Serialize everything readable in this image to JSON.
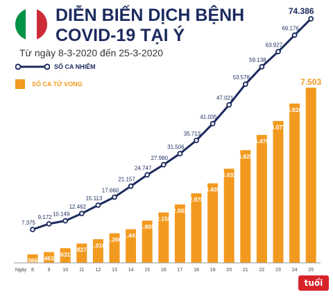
{
  "header": {
    "title_line1": "DIỄN BIẾN DỊCH BỆNH",
    "title_line2": "COVID-19 TẠI Ý",
    "subtitle": "Từ ngày 8-3-2020 đến 25-3-2020",
    "flag_colors": [
      "#009246",
      "#ffffff",
      "#ce2b37"
    ]
  },
  "legend": {
    "cases_label": "SỐ CA NHIỄM",
    "deaths_label": "SỐ CA TỬ VONG"
  },
  "colors": {
    "cases": "#1c2a5e",
    "deaths": "#f29a1f"
  },
  "logo": {
    "text": "tuổi trẻ"
  },
  "chart_data": {
    "type": "bar+line",
    "title": "DIỄN BIẾN DỊCH BỆNH COVID-19 TẠI Ý",
    "subtitle": "Từ ngày 8-3-2020 đến 25-3-2020",
    "xlabel": "Ngày",
    "categories": [
      "8",
      "9",
      "10",
      "11",
      "12",
      "13",
      "14",
      "15",
      "16",
      "17",
      "18",
      "19",
      "20",
      "21",
      "22",
      "23",
      "24",
      "25"
    ],
    "series": [
      {
        "name": "SỐ CA NHIỄM",
        "kind": "line",
        "values": [
          7375,
          9172,
          10149,
          12462,
          15113,
          17660,
          21157,
          24747,
          27980,
          31506,
          35713,
          41035,
          47021,
          53578,
          59138,
          63927,
          69176,
          74386
        ],
        "labels": [
          "7.375",
          "9.172",
          "10.149",
          "12.462",
          "15.113",
          "17.660",
          "21.157",
          "24.747",
          "27.980",
          "31.506",
          "35.713",
          "41.035",
          "47.021",
          "53.578",
          "59.138",
          "63.927",
          "69.176",
          "74.386"
        ]
      },
      {
        "name": "SỐ CA TỬ VONG",
        "kind": "bar",
        "values": [
          366,
          463,
          631,
          827,
          1016,
          1266,
          1441,
          1809,
          2158,
          2503,
          2978,
          3405,
          4032,
          4825,
          5476,
          6077,
          6820,
          7503
        ],
        "labels": [
          "366",
          "463",
          "631",
          "827",
          "1.016",
          "1.266",
          "1.441",
          "1.809",
          "2.158",
          "2.503",
          "2.978",
          "3.405",
          "4.032",
          "4.825",
          "5.476",
          "6.077",
          "6.820",
          "7.503"
        ]
      }
    ],
    "legend": "top-left",
    "grid": false
  }
}
